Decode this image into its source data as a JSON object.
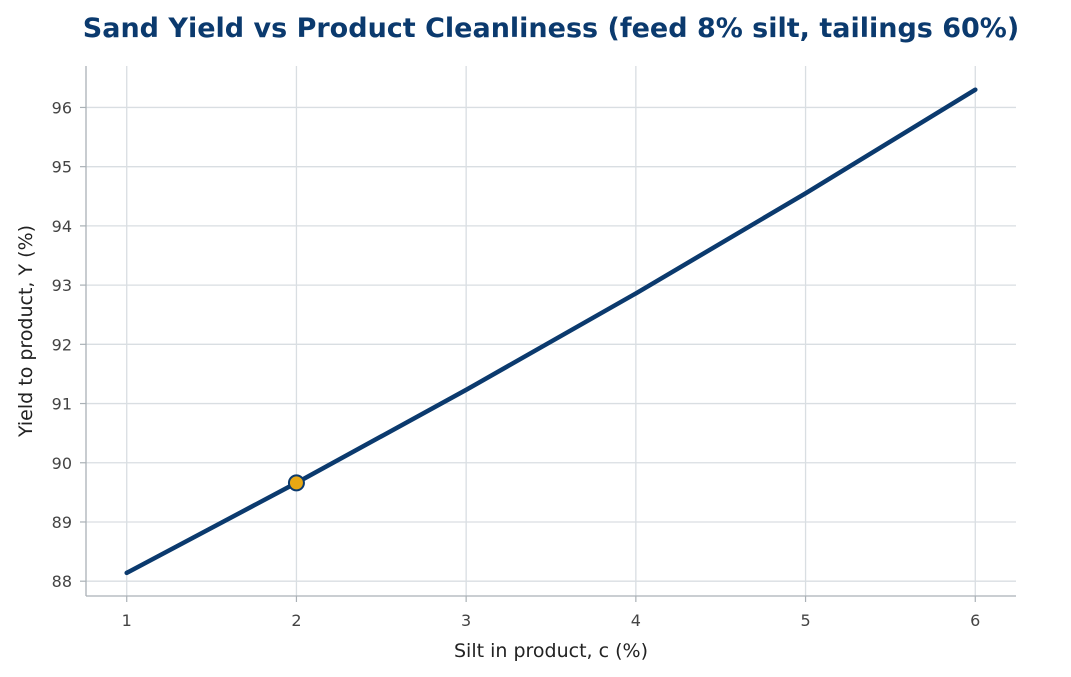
{
  "chart_data": {
    "type": "line",
    "title": "Sand Yield vs Product Cleanliness (feed 8% silt, tailings 60%)",
    "xlabel": "Silt in product, c (%)",
    "ylabel": "Yield to product, Y (%)",
    "xlim": [
      0.76,
      6.24
    ],
    "ylim": [
      87.75,
      96.7
    ],
    "xticks": [
      1,
      2,
      3,
      4,
      5,
      6
    ],
    "yticks": [
      88,
      89,
      90,
      91,
      92,
      93,
      94,
      95,
      96
    ],
    "grid": true,
    "series": [
      {
        "x": [
          1,
          2,
          3,
          4,
          5,
          6
        ],
        "y": [
          88.14,
          89.66,
          91.23,
          92.86,
          94.55,
          96.3
        ]
      }
    ],
    "highlight_point": {
      "x": 2,
      "y": 89.66
    },
    "colors": {
      "line": "#0b3a6e",
      "marker": "#e8a814",
      "marker_edge": "#0b3a6e",
      "title": "#0b3a6e"
    }
  }
}
